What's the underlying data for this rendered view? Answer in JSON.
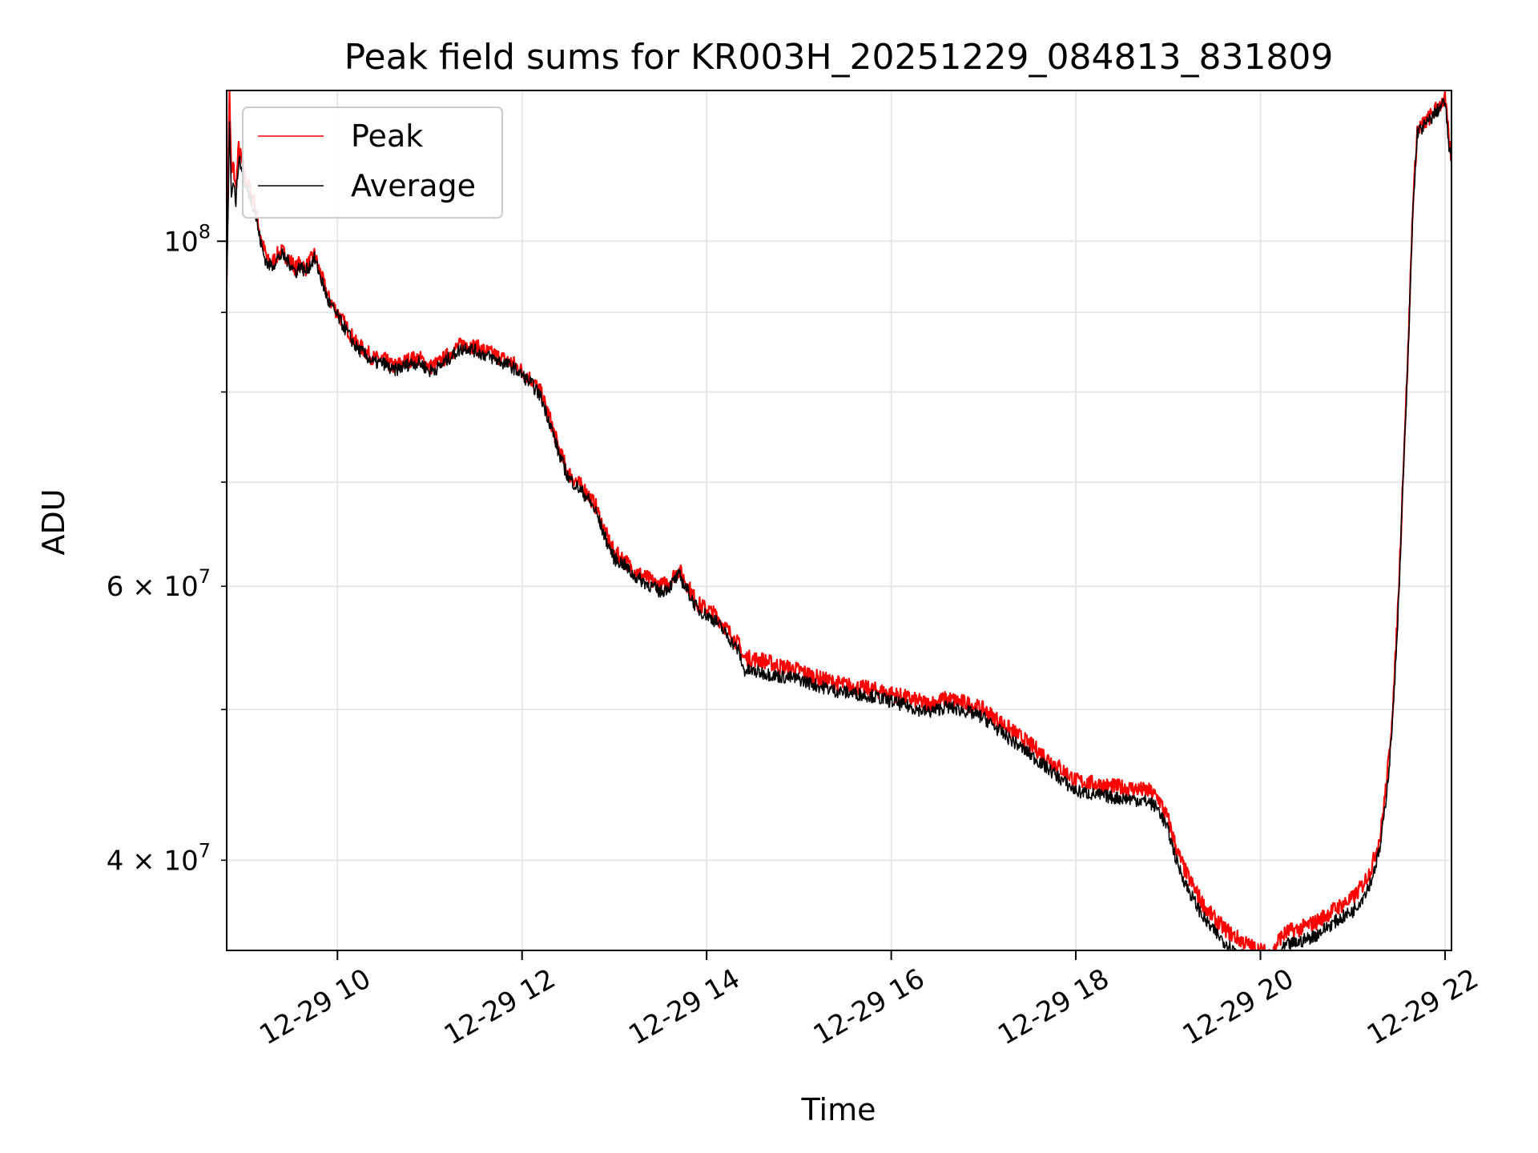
{
  "chart_data": {
    "type": "line",
    "title": "Peak field sums for KR003H_20251229_084813_831809",
    "xlabel": "Time",
    "ylabel": "ADU",
    "x_unit": "hour of 2025-12-29",
    "xlim": [
      8.8,
      22.07
    ],
    "ylim": [
      35000000,
      125000000
    ],
    "yscale": "log",
    "grid": true,
    "legend_position": "top-left",
    "x_ticks": [
      {
        "value": 10,
        "label": "12-29 10"
      },
      {
        "value": 12,
        "label": "12-29 12"
      },
      {
        "value": 14,
        "label": "12-29 14"
      },
      {
        "value": 16,
        "label": "12-29 16"
      },
      {
        "value": 18,
        "label": "12-29 18"
      },
      {
        "value": 20,
        "label": "12-29 20"
      },
      {
        "value": 22,
        "label": "12-29 22"
      }
    ],
    "y_ticks_major": [
      {
        "value": 100000000,
        "label": "10",
        "exp": "8"
      }
    ],
    "y_ticks_minor": [
      {
        "value": 40000000,
        "label": "4 × 10",
        "exp": "7"
      },
      {
        "value": 60000000,
        "label": "6 × 10",
        "exp": "7"
      }
    ],
    "y_ticks_minor_unlabeled": [
      50000000,
      70000000,
      80000000,
      90000000
    ],
    "series": [
      {
        "name": "Peak",
        "color": "#ff0000",
        "noise": 0.012,
        "x": [
          8.8,
          8.83,
          8.85,
          8.87,
          8.9,
          8.93,
          8.97,
          9.0,
          9.05,
          9.1,
          9.15,
          9.2,
          9.25,
          9.3,
          9.35,
          9.4,
          9.5,
          9.55,
          9.6,
          9.65,
          9.7,
          9.75,
          9.8,
          9.85,
          9.9,
          9.95,
          10.0,
          10.05,
          10.1,
          10.15,
          10.2,
          10.3,
          10.4,
          10.5,
          10.6,
          10.7,
          10.8,
          10.9,
          11.0,
          11.1,
          11.2,
          11.3,
          11.4,
          11.5,
          11.6,
          11.7,
          11.8,
          11.9,
          12.0,
          12.1,
          12.2,
          12.3,
          12.4,
          12.5,
          12.6,
          12.7,
          12.8,
          12.9,
          13.0,
          13.1,
          13.2,
          13.3,
          13.4,
          13.5,
          13.6,
          13.7,
          13.8,
          13.9,
          14.0,
          14.1,
          14.2,
          14.3,
          14.35,
          14.4,
          14.6,
          14.8,
          15.0,
          15.2,
          15.4,
          15.6,
          15.8,
          16.0,
          16.2,
          16.4,
          16.6,
          16.8,
          17.0,
          17.2,
          17.4,
          17.6,
          17.8,
          18.0,
          18.2,
          18.4,
          18.6,
          18.8,
          18.9,
          19.0,
          19.1,
          19.2,
          19.3,
          19.4,
          19.5,
          19.6,
          19.7,
          19.8,
          19.9,
          20.0,
          20.1,
          20.15,
          20.2,
          20.3,
          20.4,
          20.6,
          20.8,
          21.0,
          21.1,
          21.2,
          21.3,
          21.35,
          21.4,
          21.45,
          21.5,
          21.55,
          21.6,
          21.65,
          21.7,
          21.8,
          21.9,
          22.0,
          22.05,
          22.07
        ],
        "values": [
          95000000,
          125000000,
          110000000,
          112000000,
          108000000,
          115000000,
          112000000,
          110000000,
          108000000,
          106000000,
          102000000,
          99000000,
          97000000,
          97000000,
          98000000,
          98500000,
          97000000,
          96000000,
          97000000,
          96000000,
          97000000,
          98000000,
          96000000,
          94000000,
          92000000,
          91000000,
          90000000,
          89000000,
          88000000,
          87000000,
          86000000,
          85000000,
          84000000,
          84000000,
          83000000,
          83500000,
          84000000,
          84000000,
          83000000,
          83500000,
          84500000,
          85500000,
          86000000,
          85500000,
          85000000,
          84500000,
          84000000,
          83500000,
          82500000,
          81500000,
          80000000,
          77000000,
          73500000,
          71000000,
          70000000,
          69000000,
          67500000,
          65000000,
          63000000,
          62500000,
          61500000,
          61000000,
          60500000,
          60000000,
          60500000,
          61500000,
          60000000,
          58500000,
          58000000,
          57500000,
          56500000,
          55500000,
          55000000,
          54000000,
          53800000,
          53300000,
          53000000,
          52400000,
          52000000,
          51700000,
          51500000,
          51200000,
          50800000,
          50400000,
          50800000,
          50500000,
          50000000,
          49000000,
          48000000,
          47000000,
          46000000,
          45000000,
          44800000,
          44600000,
          44500000,
          44300000,
          43800000,
          42500000,
          40500000,
          39200000,
          38200000,
          37300000,
          36700000,
          36200000,
          35800000,
          35500000,
          35200000,
          35000000,
          34800000,
          35000000,
          35600000,
          36000000,
          36100000,
          36500000,
          37200000,
          37800000,
          38500000,
          39500000,
          41500000,
          44000000,
          47000000,
          52000000,
          60000000,
          72000000,
          85000000,
          105000000,
          118000000,
          119500000,
          121500000,
          123500000,
          115000000,
          113000000
        ]
      },
      {
        "name": "Average",
        "color": "#000000",
        "noise": 0.01,
        "x": [
          8.8,
          8.83,
          8.85,
          8.87,
          8.9,
          8.93,
          8.97,
          9.0,
          9.05,
          9.1,
          9.15,
          9.2,
          9.25,
          9.3,
          9.35,
          9.4,
          9.5,
          9.55,
          9.6,
          9.65,
          9.7,
          9.75,
          9.8,
          9.85,
          9.9,
          9.95,
          10.0,
          10.05,
          10.1,
          10.15,
          10.2,
          10.3,
          10.4,
          10.5,
          10.6,
          10.7,
          10.8,
          10.9,
          11.0,
          11.1,
          11.2,
          11.3,
          11.4,
          11.5,
          11.6,
          11.7,
          11.8,
          11.9,
          12.0,
          12.1,
          12.2,
          12.3,
          12.4,
          12.5,
          12.6,
          12.7,
          12.8,
          12.9,
          13.0,
          13.1,
          13.2,
          13.3,
          13.4,
          13.5,
          13.6,
          13.7,
          13.8,
          13.9,
          14.0,
          14.1,
          14.2,
          14.3,
          14.35,
          14.4,
          14.6,
          14.8,
          15.0,
          15.2,
          15.4,
          15.6,
          15.8,
          16.0,
          16.2,
          16.4,
          16.6,
          16.8,
          17.0,
          17.2,
          17.4,
          17.6,
          17.8,
          18.0,
          18.2,
          18.4,
          18.6,
          18.8,
          18.9,
          19.0,
          19.1,
          19.2,
          19.3,
          19.4,
          19.5,
          19.6,
          19.7,
          19.8,
          19.9,
          20.0,
          20.1,
          20.15,
          20.2,
          20.3,
          20.4,
          20.6,
          20.8,
          21.0,
          21.1,
          21.2,
          21.3,
          21.35,
          21.4,
          21.45,
          21.5,
          21.55,
          21.6,
          21.65,
          21.7,
          21.8,
          21.9,
          22.0,
          22.05,
          22.07
        ],
        "values": [
          92000000,
          120000000,
          107000000,
          110000000,
          106000000,
          113000000,
          111000000,
          108500000,
          107000000,
          105000000,
          101000000,
          98000000,
          96500000,
          96500000,
          97500000,
          98000000,
          96500000,
          95500000,
          96500000,
          95500000,
          96500000,
          97500000,
          95500000,
          93500000,
          91500000,
          90500000,
          89500000,
          88500000,
          87500000,
          86500000,
          85500000,
          84500000,
          83500000,
          83500000,
          82500000,
          83000000,
          83500000,
          83500000,
          82500000,
          83000000,
          84000000,
          85000000,
          85500000,
          85000000,
          84500000,
          84000000,
          83500000,
          83000000,
          82000000,
          81000000,
          79500000,
          76500000,
          73000000,
          70500000,
          69500000,
          68500000,
          67000000,
          64500000,
          62500000,
          62000000,
          61000000,
          60500000,
          60000000,
          59500000,
          60000000,
          61000000,
          59500000,
          58000000,
          57500000,
          57000000,
          56000000,
          55000000,
          54500000,
          53000000,
          52800000,
          52500000,
          52300000,
          51800000,
          51400000,
          51200000,
          51000000,
          50600000,
          50200000,
          49800000,
          50200000,
          49900000,
          49400000,
          48300000,
          47300000,
          46300000,
          45300000,
          44300000,
          44100000,
          43900000,
          43800000,
          43600000,
          43100000,
          41800000,
          39800000,
          38500000,
          37500000,
          36600000,
          36000000,
          35500000,
          35100000,
          34800000,
          34500000,
          34300000,
          34100000,
          34300000,
          34900000,
          35300000,
          35400000,
          35800000,
          36500000,
          37100000,
          37800000,
          38800000,
          40800000,
          43300000,
          46300000,
          51300000,
          59300000,
          71300000,
          84300000,
          104000000,
          117500000,
          119000000,
          121000000,
          123000000,
          114000000,
          112000000
        ]
      }
    ]
  }
}
